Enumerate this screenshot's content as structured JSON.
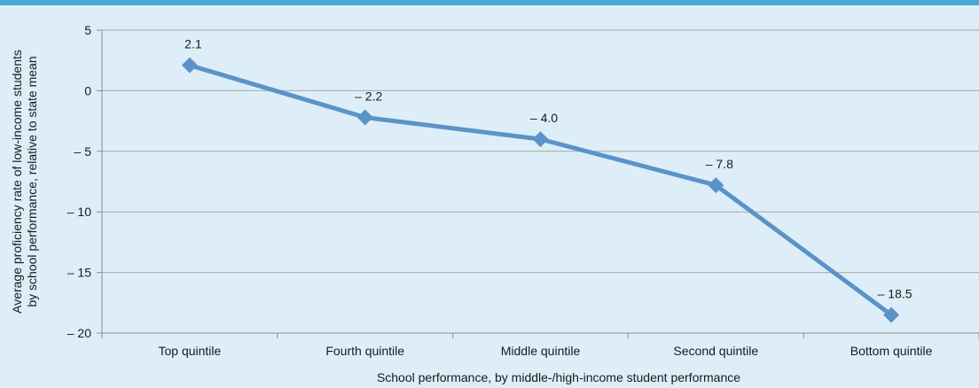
{
  "colors": {
    "background": "#ddeef8",
    "top_rule": "#4aa6d9",
    "series": "#5b93c9",
    "gridline": "#a6a6a6",
    "axis": "#8c8c8c",
    "text": "#1a1a1a"
  },
  "chart_data": {
    "type": "line",
    "title": "",
    "categories": [
      "Top quintile",
      "Fourth quintile",
      "Middle quintile",
      "Second quintile",
      "Bottom quintile"
    ],
    "series": [
      {
        "values": [
          2.1,
          -2.2,
          -4.0,
          -7.8,
          -18.5
        ],
        "data_labels": [
          "2.1",
          "– 2.2",
          "– 4.0",
          "– 7.8",
          "– 18.5"
        ],
        "marker": "diamond"
      }
    ],
    "xlabel": "School performance, by middle-/high-income student performance",
    "ylabel_lines": [
      "Average proficiency rate of low-income students",
      "by school performance, relative to state mean"
    ],
    "ylim": [
      -20,
      5
    ],
    "yticks": [
      5,
      0,
      -5,
      -10,
      -15,
      -20
    ],
    "ytick_labels": [
      "5",
      "0",
      "– 5",
      "– 10",
      "– 15",
      "– 20"
    ],
    "grid": true,
    "legend": "none"
  }
}
